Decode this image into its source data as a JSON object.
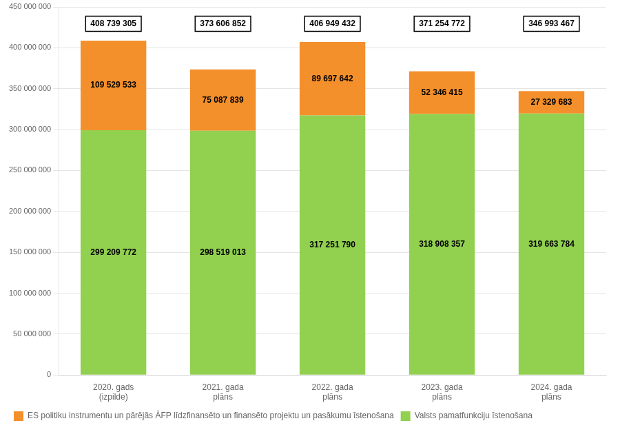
{
  "chart_data": {
    "type": "bar",
    "stacked": true,
    "categories": [
      "2020. gads\n(izpilde)",
      "2021. gada\nplāns",
      "2022. gada\nplāns",
      "2023. gada\nplāns",
      "2024. gada\nplāns"
    ],
    "series": [
      {
        "name": "Valsts pamatfunkciju īstenošana",
        "color": "#92D050",
        "values": [
          299209772,
          298519013,
          317251790,
          318908357,
          319663784
        ],
        "value_labels": [
          "299 209 772",
          "298 519 013",
          "317 251 790",
          "318 908 357",
          "319 663 784"
        ]
      },
      {
        "name": "ES politiku instrumentu un pārējās ĀFP līdzfinansēto un finansēto projektu un pasākumu īstenošana",
        "color": "#F4902B",
        "values": [
          109529533,
          75087839,
          89697642,
          52346415,
          27329683
        ],
        "value_labels": [
          "109 529 533",
          "75 087 839",
          "89 697 642",
          "52 346 415",
          "27 329 683"
        ]
      }
    ],
    "totals": [
      408739305,
      373606852,
      406949432,
      371254772,
      346993467
    ],
    "total_labels": [
      "408 739 305",
      "373 606 852",
      "406 949 432",
      "371 254 772",
      "346 993 467"
    ],
    "ylim": [
      0,
      450000000
    ],
    "yticks": [
      0,
      {
        "value": 50000000,
        "label": "50 000 000"
      },
      {
        "value": 100000000,
        "label": "100 000 000"
      },
      {
        "value": 150000000,
        "label": "150 000 000"
      },
      {
        "value": 200000000,
        "label": "200 000 000"
      },
      {
        "value": 250000000,
        "label": "250 000 000"
      },
      {
        "value": 300000000,
        "label": "300 000 000"
      },
      {
        "value": 350000000,
        "label": "350 000 000"
      },
      {
        "value": 400000000,
        "label": "400 000 000"
      },
      {
        "value": 450000000,
        "label": "450 000 000"
      }
    ],
    "grid": true,
    "legend": "bottom",
    "data_labels": true
  }
}
